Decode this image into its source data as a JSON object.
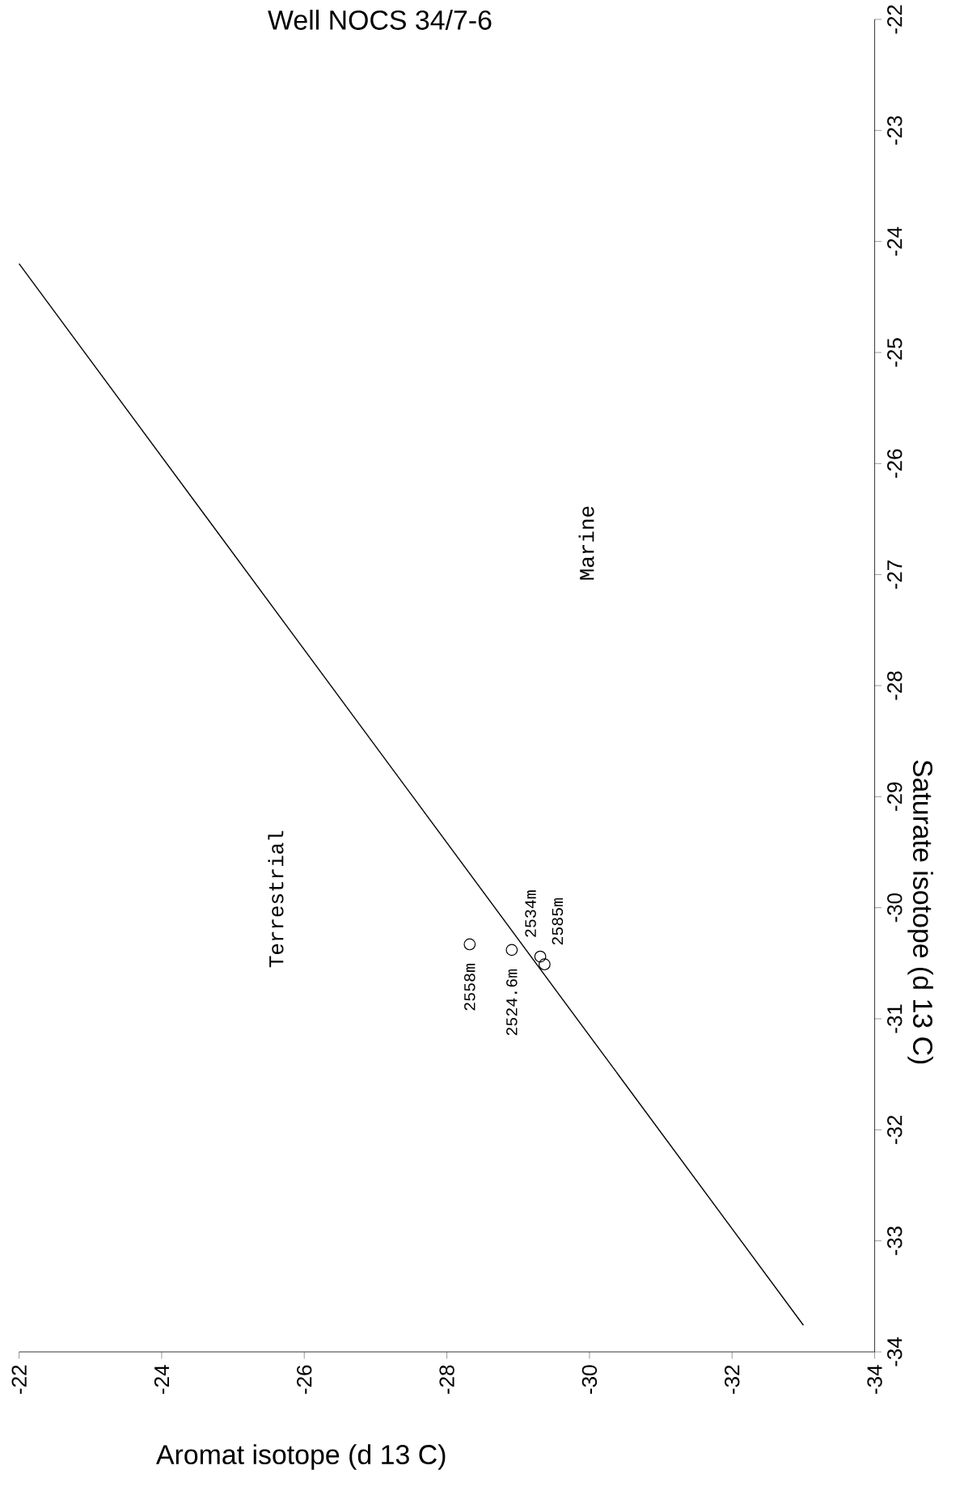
{
  "chart_data": {
    "type": "scatter",
    "title": "Well NOCS 34/7-6",
    "xlabel": "Aromat isotope (d 13 C)",
    "ylabel": "Saturate isotope (d 13 C)",
    "xlim": [
      -22,
      -34
    ],
    "ylim": [
      -34,
      -22
    ],
    "xticks": [
      -22,
      -24,
      -26,
      -28,
      -30,
      -32,
      -34
    ],
    "yticks": [
      -22,
      -23,
      -24,
      -25,
      -26,
      -27,
      -28,
      -29,
      -30,
      -31,
      -32,
      -33,
      -34
    ],
    "grid": false,
    "series": [
      {
        "type": "line",
        "color": "#000000",
        "marker": "none",
        "line_style": "solid",
        "x": [
          -22,
          -33
        ],
        "values": [
          -24.2,
          -33.76
        ]
      },
      {
        "type": "scatter",
        "color": "#000000",
        "marker": "circle",
        "x": [
          -28.32,
          -28.91,
          -29.31,
          -29.37
        ],
        "values": [
          -30.33,
          -30.38,
          -30.44,
          -30.51
        ]
      }
    ],
    "annotations": [
      "Terrestrial",
      "Marine",
      {
        "text": "2558m",
        "x": -28.32,
        "y": -30.33
      },
      {
        "text": "2524.6m",
        "x": -28.91,
        "y": -30.38
      },
      {
        "text": "2534m",
        "x": -29.31,
        "y": -30.44
      },
      {
        "text": "2585m",
        "x": -29.37,
        "y": -30.51
      }
    ]
  }
}
